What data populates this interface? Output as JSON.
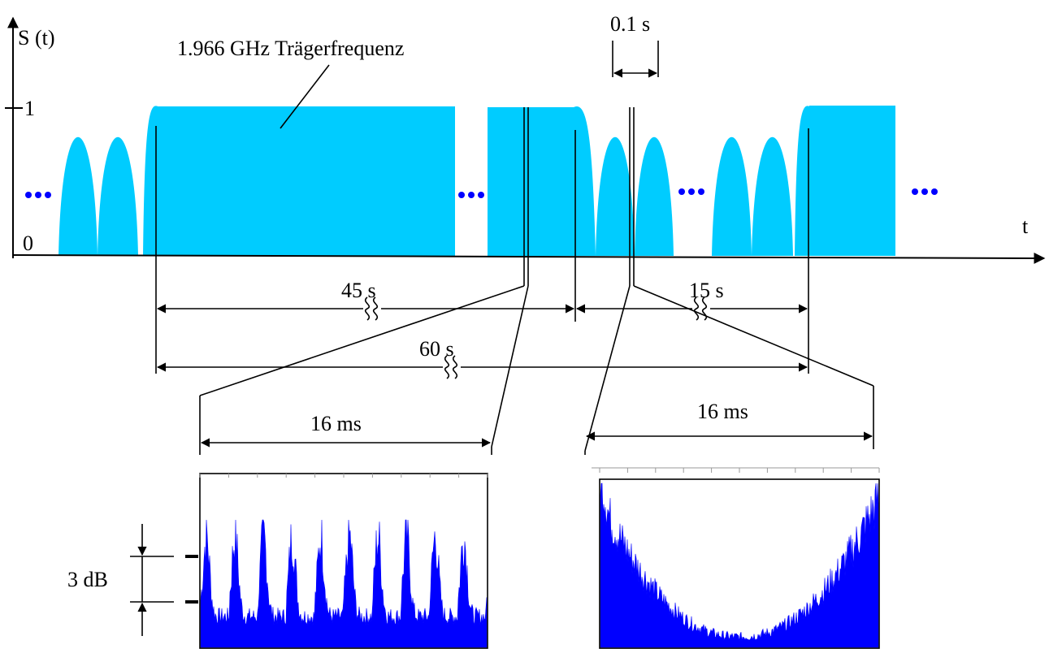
{
  "colors": {
    "carrier": "#00ccff",
    "spectrum": "#0000ff",
    "dots": "#0000ff",
    "line": "#000000"
  },
  "labels": {
    "y_axis": "S (t)",
    "x_axis": "t",
    "tick_one": "1",
    "tick_zero": "0",
    "carrier": "1.966 GHz Trägerfrequenz",
    "pulse_width": "0.1  s",
    "dur_45": "45 s",
    "dur_15": "15 s",
    "dur_60": "60 s",
    "zoom_left": "16 ms",
    "zoom_right": "16 ms",
    "db_scale": "3 dB"
  }
}
